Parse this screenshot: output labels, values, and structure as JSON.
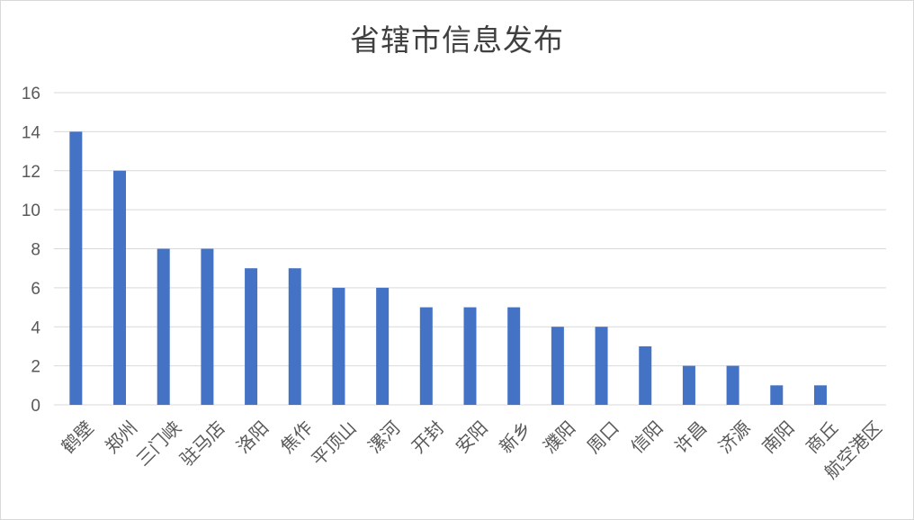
{
  "chart_data": {
    "type": "bar",
    "title": "省辖市信息发布",
    "categories": [
      "鹤壁",
      "郑州",
      "三门峡",
      "驻马店",
      "洛阳",
      "焦作",
      "平顶山",
      "漯河",
      "开封",
      "安阳",
      "新乡",
      "濮阳",
      "周口",
      "信阳",
      "许昌",
      "济源",
      "南阳",
      "商丘",
      "航空港区"
    ],
    "values": [
      14,
      12,
      8,
      8,
      7,
      7,
      6,
      6,
      5,
      5,
      5,
      4,
      4,
      3,
      2,
      2,
      1,
      1,
      0
    ],
    "ylim": [
      0,
      16
    ],
    "yticks": [
      "0",
      "2",
      "4",
      "6",
      "8",
      "10",
      "12",
      "14",
      "16"
    ],
    "grid": true,
    "legend": "none",
    "bar_color": "#4472c4",
    "grid_color": "#d9d9d9"
  }
}
